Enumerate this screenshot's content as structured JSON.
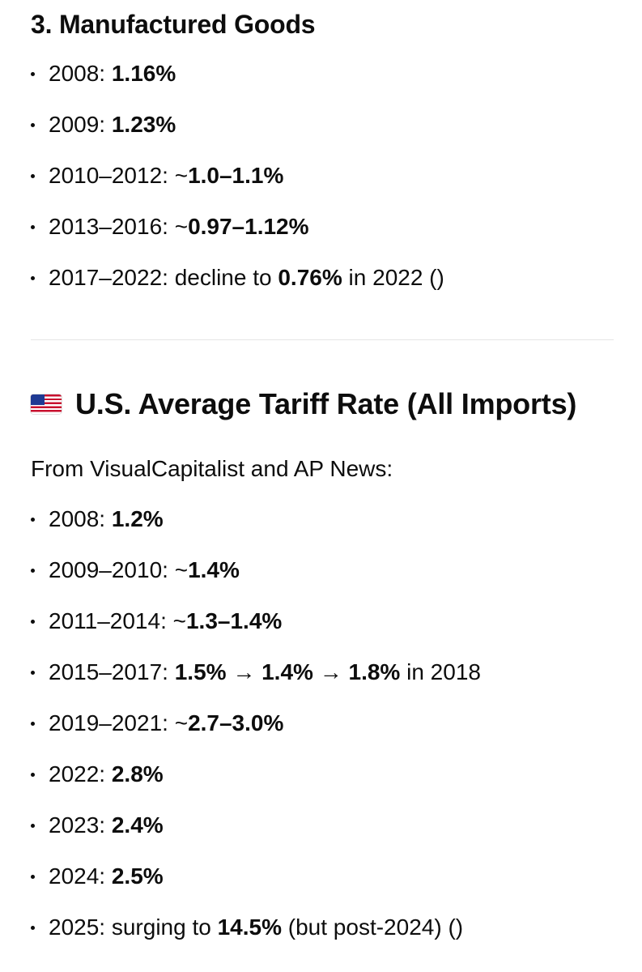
{
  "section_manufactured": {
    "title": "3. Manufactured Goods",
    "items": [
      {
        "prefix": "2008: ",
        "bold": "1.16%",
        "suffix": ""
      },
      {
        "prefix": "2009: ",
        "bold": "1.23%",
        "suffix": ""
      },
      {
        "prefix": "2010–2012: ~",
        "bold": "1.0–1.1%",
        "suffix": ""
      },
      {
        "prefix": "2013–2016: ~",
        "bold": "0.97–1.12%",
        "suffix": ""
      },
      {
        "prefix": "2017–2022: decline to ",
        "bold": "0.76%",
        "suffix": " in 2022 ()"
      }
    ]
  },
  "section_tariff": {
    "flag_icon": "us-flag-icon",
    "title": "U.S. Average Tariff Rate (All Imports)",
    "intro": "From VisualCapitalist and AP News:",
    "items": [
      {
        "prefix": "2008: ",
        "bold": "1.2%"
      },
      {
        "prefix": "2009–2010: ~",
        "bold": "1.4%"
      },
      {
        "prefix": "2011–2014: ~",
        "bold": "1.3–1.4%"
      },
      {
        "prefix": "2015–2017: ",
        "bold": "1.5%",
        "mid1": " → ",
        "bold2": "1.4%",
        "mid2": " → ",
        "bold3": "1.8%",
        "suffix": " in 2018"
      },
      {
        "prefix": "2019–2021: ~",
        "bold": "2.7–3.0%"
      },
      {
        "prefix": "2022: ",
        "bold": "2.8%"
      },
      {
        "prefix": "2023: ",
        "bold": "2.4%"
      },
      {
        "prefix": "2024: ",
        "bold": "2.5%"
      },
      {
        "prefix": "2025: surging to ",
        "bold": "14.5%",
        "suffix": " (but post-2024) ()"
      }
    ]
  }
}
